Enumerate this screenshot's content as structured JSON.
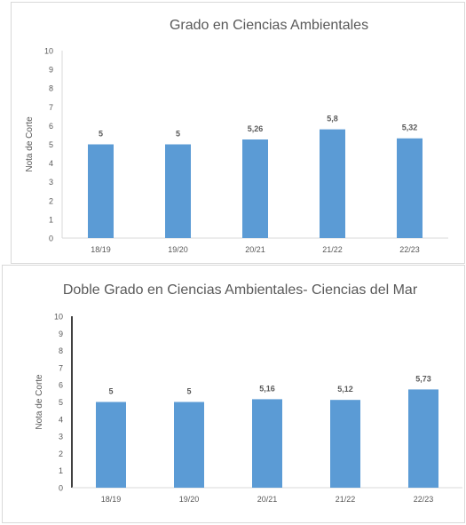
{
  "chart_data": [
    {
      "type": "bar",
      "title": "Grado en Ciencias Ambientales",
      "xlabel": "",
      "ylabel": "Nota de Corte",
      "ylim": [
        0,
        10
      ],
      "yticks": [
        "0",
        "1",
        "2",
        "3",
        "4",
        "5",
        "6",
        "7",
        "8",
        "9",
        "10"
      ],
      "categories": [
        "18/19",
        "19/20",
        "20/21",
        "21/22",
        "22/23"
      ],
      "values": [
        5,
        5,
        5.26,
        5.8,
        5.32
      ],
      "data_labels": [
        "5",
        "5",
        "5,26",
        "5,8",
        "5,32"
      ],
      "bar_color": "#5b9bd5",
      "grid": false,
      "legend": "none"
    },
    {
      "type": "bar",
      "title": "Doble Grado en Ciencias Ambientales- Ciencias del Mar",
      "xlabel": "",
      "ylabel": "Nota de Corte",
      "ylim": [
        0,
        10
      ],
      "yticks": [
        "0",
        "1",
        "2",
        "3",
        "4",
        "5",
        "6",
        "7",
        "8",
        "9",
        "10"
      ],
      "categories": [
        "18/19",
        "19/20",
        "20/21",
        "21/22",
        "22/23"
      ],
      "values": [
        5,
        5,
        5.16,
        5.12,
        5.73
      ],
      "data_labels": [
        "5",
        "5",
        "5,16",
        "5,12",
        "5,73"
      ],
      "bar_color": "#5b9bd5",
      "grid": false,
      "legend": "none"
    }
  ]
}
